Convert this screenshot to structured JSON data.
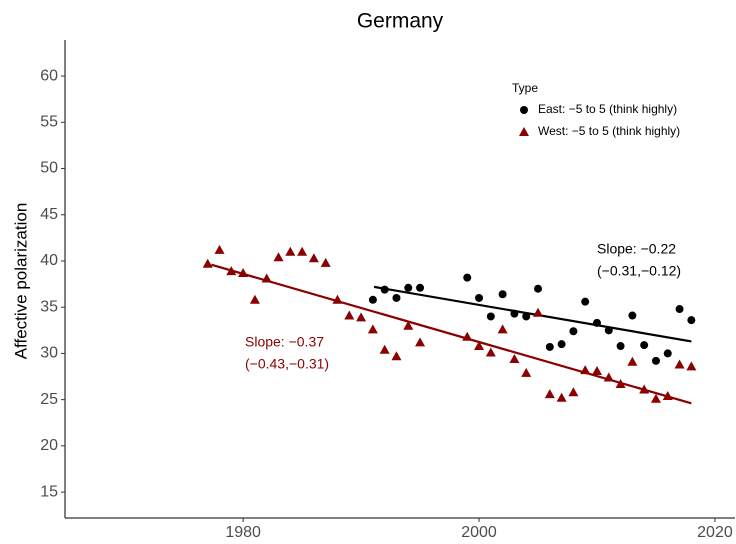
{
  "chart_data": {
    "type": "scatter",
    "title": "Germany",
    "y_label": "Affective polarization",
    "xlim": [
      1964.9,
      2021.7
    ],
    "ylim": [
      12.2,
      63.9
    ],
    "xticks": [
      1980,
      2000,
      2020
    ],
    "yticks": [
      15,
      20,
      25,
      30,
      35,
      40,
      45,
      50,
      55,
      60
    ],
    "legend_title": "Type",
    "series": [
      {
        "name": "East: −5 to 5 (think highly)",
        "color": "#000000",
        "marker": "circle",
        "x": [
          1991,
          1992,
          1993,
          1994,
          1995,
          1999,
          2000,
          2001,
          2002,
          2003,
          2004,
          2005,
          2006,
          2007,
          2008,
          2009,
          2010,
          2011,
          2012,
          2013,
          2014,
          2015,
          2016,
          2017,
          2018
        ],
        "values": [
          35.8,
          36.9,
          36.0,
          37.1,
          37.1,
          38.2,
          36.0,
          34.0,
          36.4,
          34.3,
          34.0,
          37.0,
          30.7,
          31.0,
          32.4,
          35.6,
          33.3,
          32.5,
          30.8,
          34.1,
          30.9,
          29.2,
          30.0,
          34.8,
          33.6
        ],
        "fit": {
          "x": [
            1991.1,
            2018
          ],
          "values": [
            37.2,
            31.3
          ]
        },
        "annotation": [
          "Slope: −0.22",
          "(−0.31,−0.12)"
        ]
      },
      {
        "name": "West: −5 to 5 (think highly)",
        "color": "#8b0000",
        "marker": "triangle",
        "x": [
          1977,
          1978,
          1979,
          1980,
          1981,
          1982,
          1983,
          1984,
          1985,
          1986,
          1987,
          1988,
          1989,
          1990,
          1991,
          1992,
          1993,
          1994,
          1995,
          1999,
          2000,
          2001,
          2002,
          2003,
          2004,
          2005,
          2006,
          2007,
          2008,
          2009,
          2010,
          2011,
          2012,
          2013,
          2014,
          2015,
          2016,
          2017,
          2018
        ],
        "values": [
          39.7,
          41.2,
          38.9,
          38.7,
          35.8,
          38.1,
          40.4,
          41.0,
          41.0,
          40.3,
          39.8,
          35.8,
          34.1,
          33.9,
          32.6,
          30.4,
          29.7,
          33.0,
          31.2,
          31.8,
          30.8,
          30.1,
          32.6,
          29.4,
          27.9,
          34.4,
          25.6,
          25.2,
          25.8,
          28.2,
          28.1,
          27.4,
          26.7,
          29.1,
          26.1,
          25.1,
          25.4,
          28.8,
          28.6
        ],
        "fit": {
          "x": [
            1977.3,
            2018
          ],
          "values": [
            39.6,
            24.6
          ]
        },
        "annotation": [
          "Slope: −0.37",
          "(−0.43,−0.31)"
        ]
      }
    ]
  }
}
